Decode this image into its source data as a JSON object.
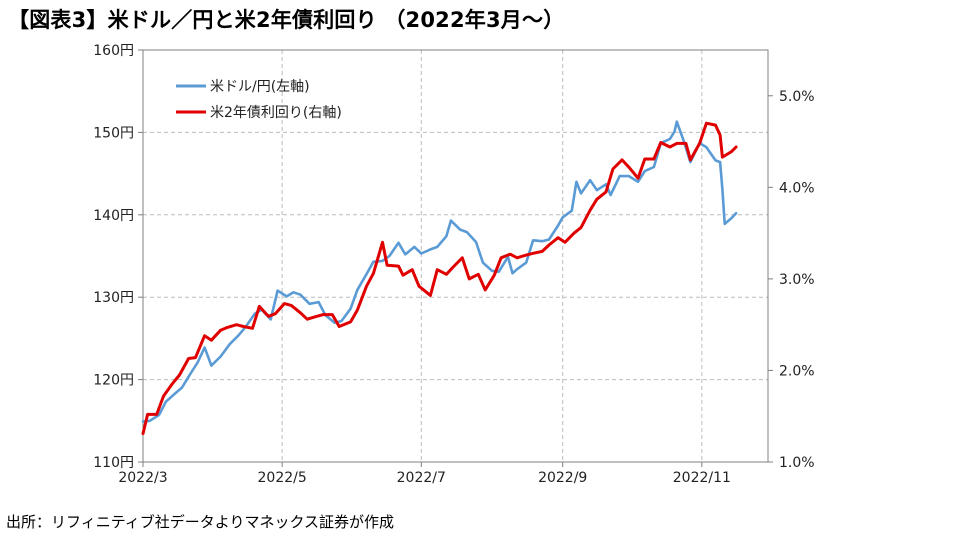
{
  "title": "【図表3】米ドル／円と米2年債利回り （2022年3月～）",
  "source": "出所：リフィニティブ社データよりマネックス証券が作成",
  "chart_data": {
    "type": "line",
    "xlabel": "",
    "ylabel_left": "",
    "ylabel_right": "",
    "x_ticks": [
      "2022/3",
      "2022/5",
      "2022/7",
      "2022/9",
      "2022/11"
    ],
    "x_range": [
      "2022-03-01",
      "2022-11-30"
    ],
    "y_left": {
      "lim": [
        110,
        160
      ],
      "ticks": [
        110,
        120,
        130,
        140,
        150,
        160
      ],
      "suffix": "円"
    },
    "y_right": {
      "lim": [
        1.0,
        5.5
      ],
      "ticks": [
        1.0,
        2.0,
        3.0,
        4.0,
        5.0
      ],
      "suffix": "%"
    },
    "grid": true,
    "legend_position": "top-left",
    "series": [
      {
        "name": "米ドル/円(左軸)",
        "axis": "left",
        "color": "#5b9bd5",
        "points": [
          [
            "2022-03-01",
            114.9
          ],
          [
            "2022-03-04",
            115.0
          ],
          [
            "2022-03-08",
            115.7
          ],
          [
            "2022-03-11",
            117.3
          ],
          [
            "2022-03-15",
            118.3
          ],
          [
            "2022-03-18",
            119.0
          ],
          [
            "2022-03-22",
            120.8
          ],
          [
            "2022-03-25",
            122.1
          ],
          [
            "2022-03-28",
            123.9
          ],
          [
            "2022-03-31",
            121.7
          ],
          [
            "2022-04-04",
            122.8
          ],
          [
            "2022-04-08",
            124.3
          ],
          [
            "2022-04-12",
            125.4
          ],
          [
            "2022-04-15",
            126.4
          ],
          [
            "2022-04-19",
            128.0
          ],
          [
            "2022-04-22",
            128.5
          ],
          [
            "2022-04-26",
            127.3
          ],
          [
            "2022-04-29",
            130.8
          ],
          [
            "2022-05-03",
            130.1
          ],
          [
            "2022-05-06",
            130.6
          ],
          [
            "2022-05-09",
            130.3
          ],
          [
            "2022-05-13",
            129.2
          ],
          [
            "2022-05-17",
            129.4
          ],
          [
            "2022-05-20",
            127.8
          ],
          [
            "2022-05-24",
            126.9
          ],
          [
            "2022-05-27",
            127.1
          ],
          [
            "2022-05-31",
            128.6
          ],
          [
            "2022-06-03",
            130.9
          ],
          [
            "2022-06-07",
            132.8
          ],
          [
            "2022-06-10",
            134.3
          ],
          [
            "2022-06-14",
            134.4
          ],
          [
            "2022-06-17",
            135.0
          ],
          [
            "2022-06-21",
            136.6
          ],
          [
            "2022-06-24",
            135.2
          ],
          [
            "2022-06-28",
            136.1
          ],
          [
            "2022-07-01",
            135.3
          ],
          [
            "2022-07-05",
            135.8
          ],
          [
            "2022-07-08",
            136.1
          ],
          [
            "2022-07-12",
            137.4
          ],
          [
            "2022-07-14",
            139.3
          ],
          [
            "2022-07-18",
            138.2
          ],
          [
            "2022-07-21",
            137.9
          ],
          [
            "2022-07-25",
            136.7
          ],
          [
            "2022-07-28",
            134.2
          ],
          [
            "2022-08-01",
            133.2
          ],
          [
            "2022-08-04",
            133.1
          ],
          [
            "2022-08-08",
            134.9
          ],
          [
            "2022-08-10",
            132.9
          ],
          [
            "2022-08-12",
            133.4
          ],
          [
            "2022-08-16",
            134.2
          ],
          [
            "2022-08-19",
            136.9
          ],
          [
            "2022-08-23",
            136.8
          ],
          [
            "2022-08-26",
            137.0
          ],
          [
            "2022-08-30",
            138.7
          ],
          [
            "2022-09-01",
            139.7
          ],
          [
            "2022-09-05",
            140.5
          ],
          [
            "2022-09-07",
            144.0
          ],
          [
            "2022-09-09",
            142.6
          ],
          [
            "2022-09-13",
            144.2
          ],
          [
            "2022-09-16",
            143.0
          ],
          [
            "2022-09-20",
            143.7
          ],
          [
            "2022-09-22",
            142.4
          ],
          [
            "2022-09-26",
            144.7
          ],
          [
            "2022-09-30",
            144.7
          ],
          [
            "2022-10-04",
            144.0
          ],
          [
            "2022-10-07",
            145.3
          ],
          [
            "2022-10-11",
            145.8
          ],
          [
            "2022-10-14",
            148.7
          ],
          [
            "2022-10-18",
            149.2
          ],
          [
            "2022-10-20",
            150.1
          ],
          [
            "2022-10-21",
            151.3
          ],
          [
            "2022-10-24",
            149.0
          ],
          [
            "2022-10-27",
            146.4
          ],
          [
            "2022-10-31",
            148.7
          ],
          [
            "2022-11-03",
            148.2
          ],
          [
            "2022-11-07",
            146.6
          ],
          [
            "2022-11-09",
            146.4
          ],
          [
            "2022-11-10",
            143.1
          ],
          [
            "2022-11-11",
            138.9
          ],
          [
            "2022-11-14",
            139.6
          ],
          [
            "2022-11-16",
            140.2
          ]
        ]
      },
      {
        "name": "米2年債利回り(右軸)",
        "axis": "right",
        "color": "#e00000",
        "points": [
          [
            "2022-03-01",
            1.31
          ],
          [
            "2022-03-03",
            1.52
          ],
          [
            "2022-03-07",
            1.52
          ],
          [
            "2022-03-10",
            1.72
          ],
          [
            "2022-03-14",
            1.86
          ],
          [
            "2022-03-17",
            1.95
          ],
          [
            "2022-03-21",
            2.13
          ],
          [
            "2022-03-24",
            2.14
          ],
          [
            "2022-03-28",
            2.38
          ],
          [
            "2022-03-31",
            2.33
          ],
          [
            "2022-04-04",
            2.44
          ],
          [
            "2022-04-07",
            2.47
          ],
          [
            "2022-04-11",
            2.5
          ],
          [
            "2022-04-14",
            2.48
          ],
          [
            "2022-04-18",
            2.46
          ],
          [
            "2022-04-21",
            2.7
          ],
          [
            "2022-04-25",
            2.59
          ],
          [
            "2022-04-28",
            2.62
          ],
          [
            "2022-05-02",
            2.73
          ],
          [
            "2022-05-05",
            2.71
          ],
          [
            "2022-05-09",
            2.63
          ],
          [
            "2022-05-12",
            2.56
          ],
          [
            "2022-05-16",
            2.59
          ],
          [
            "2022-05-19",
            2.61
          ],
          [
            "2022-05-23",
            2.61
          ],
          [
            "2022-05-26",
            2.48
          ],
          [
            "2022-05-31",
            2.53
          ],
          [
            "2022-06-03",
            2.66
          ],
          [
            "2022-06-07",
            2.92
          ],
          [
            "2022-06-10",
            3.06
          ],
          [
            "2022-06-14",
            3.4
          ],
          [
            "2022-06-16",
            3.15
          ],
          [
            "2022-06-21",
            3.14
          ],
          [
            "2022-06-23",
            3.04
          ],
          [
            "2022-06-27",
            3.1
          ],
          [
            "2022-06-30",
            2.92
          ],
          [
            "2022-07-05",
            2.82
          ],
          [
            "2022-07-08",
            3.1
          ],
          [
            "2022-07-12",
            3.05
          ],
          [
            "2022-07-15",
            3.13
          ],
          [
            "2022-07-19",
            3.23
          ],
          [
            "2022-07-22",
            3.0
          ],
          [
            "2022-07-26",
            3.05
          ],
          [
            "2022-07-29",
            2.88
          ],
          [
            "2022-08-02",
            3.04
          ],
          [
            "2022-08-05",
            3.23
          ],
          [
            "2022-08-09",
            3.27
          ],
          [
            "2022-08-12",
            3.23
          ],
          [
            "2022-08-16",
            3.26
          ],
          [
            "2022-08-19",
            3.28
          ],
          [
            "2022-08-23",
            3.3
          ],
          [
            "2022-08-26",
            3.37
          ],
          [
            "2022-08-30",
            3.45
          ],
          [
            "2022-09-02",
            3.4
          ],
          [
            "2022-09-06",
            3.5
          ],
          [
            "2022-09-09",
            3.56
          ],
          [
            "2022-09-13",
            3.75
          ],
          [
            "2022-09-16",
            3.87
          ],
          [
            "2022-09-20",
            3.95
          ],
          [
            "2022-09-23",
            4.2
          ],
          [
            "2022-09-27",
            4.3
          ],
          [
            "2022-09-30",
            4.22
          ],
          [
            "2022-10-04",
            4.1
          ],
          [
            "2022-10-07",
            4.31
          ],
          [
            "2022-10-11",
            4.31
          ],
          [
            "2022-10-14",
            4.49
          ],
          [
            "2022-10-18",
            4.44
          ],
          [
            "2022-10-21",
            4.48
          ],
          [
            "2022-10-25",
            4.48
          ],
          [
            "2022-10-27",
            4.3
          ],
          [
            "2022-10-31",
            4.48
          ],
          [
            "2022-11-03",
            4.7
          ],
          [
            "2022-11-07",
            4.68
          ],
          [
            "2022-11-09",
            4.57
          ],
          [
            "2022-11-10",
            4.33
          ],
          [
            "2022-11-14",
            4.39
          ],
          [
            "2022-11-16",
            4.44
          ]
        ]
      }
    ]
  }
}
